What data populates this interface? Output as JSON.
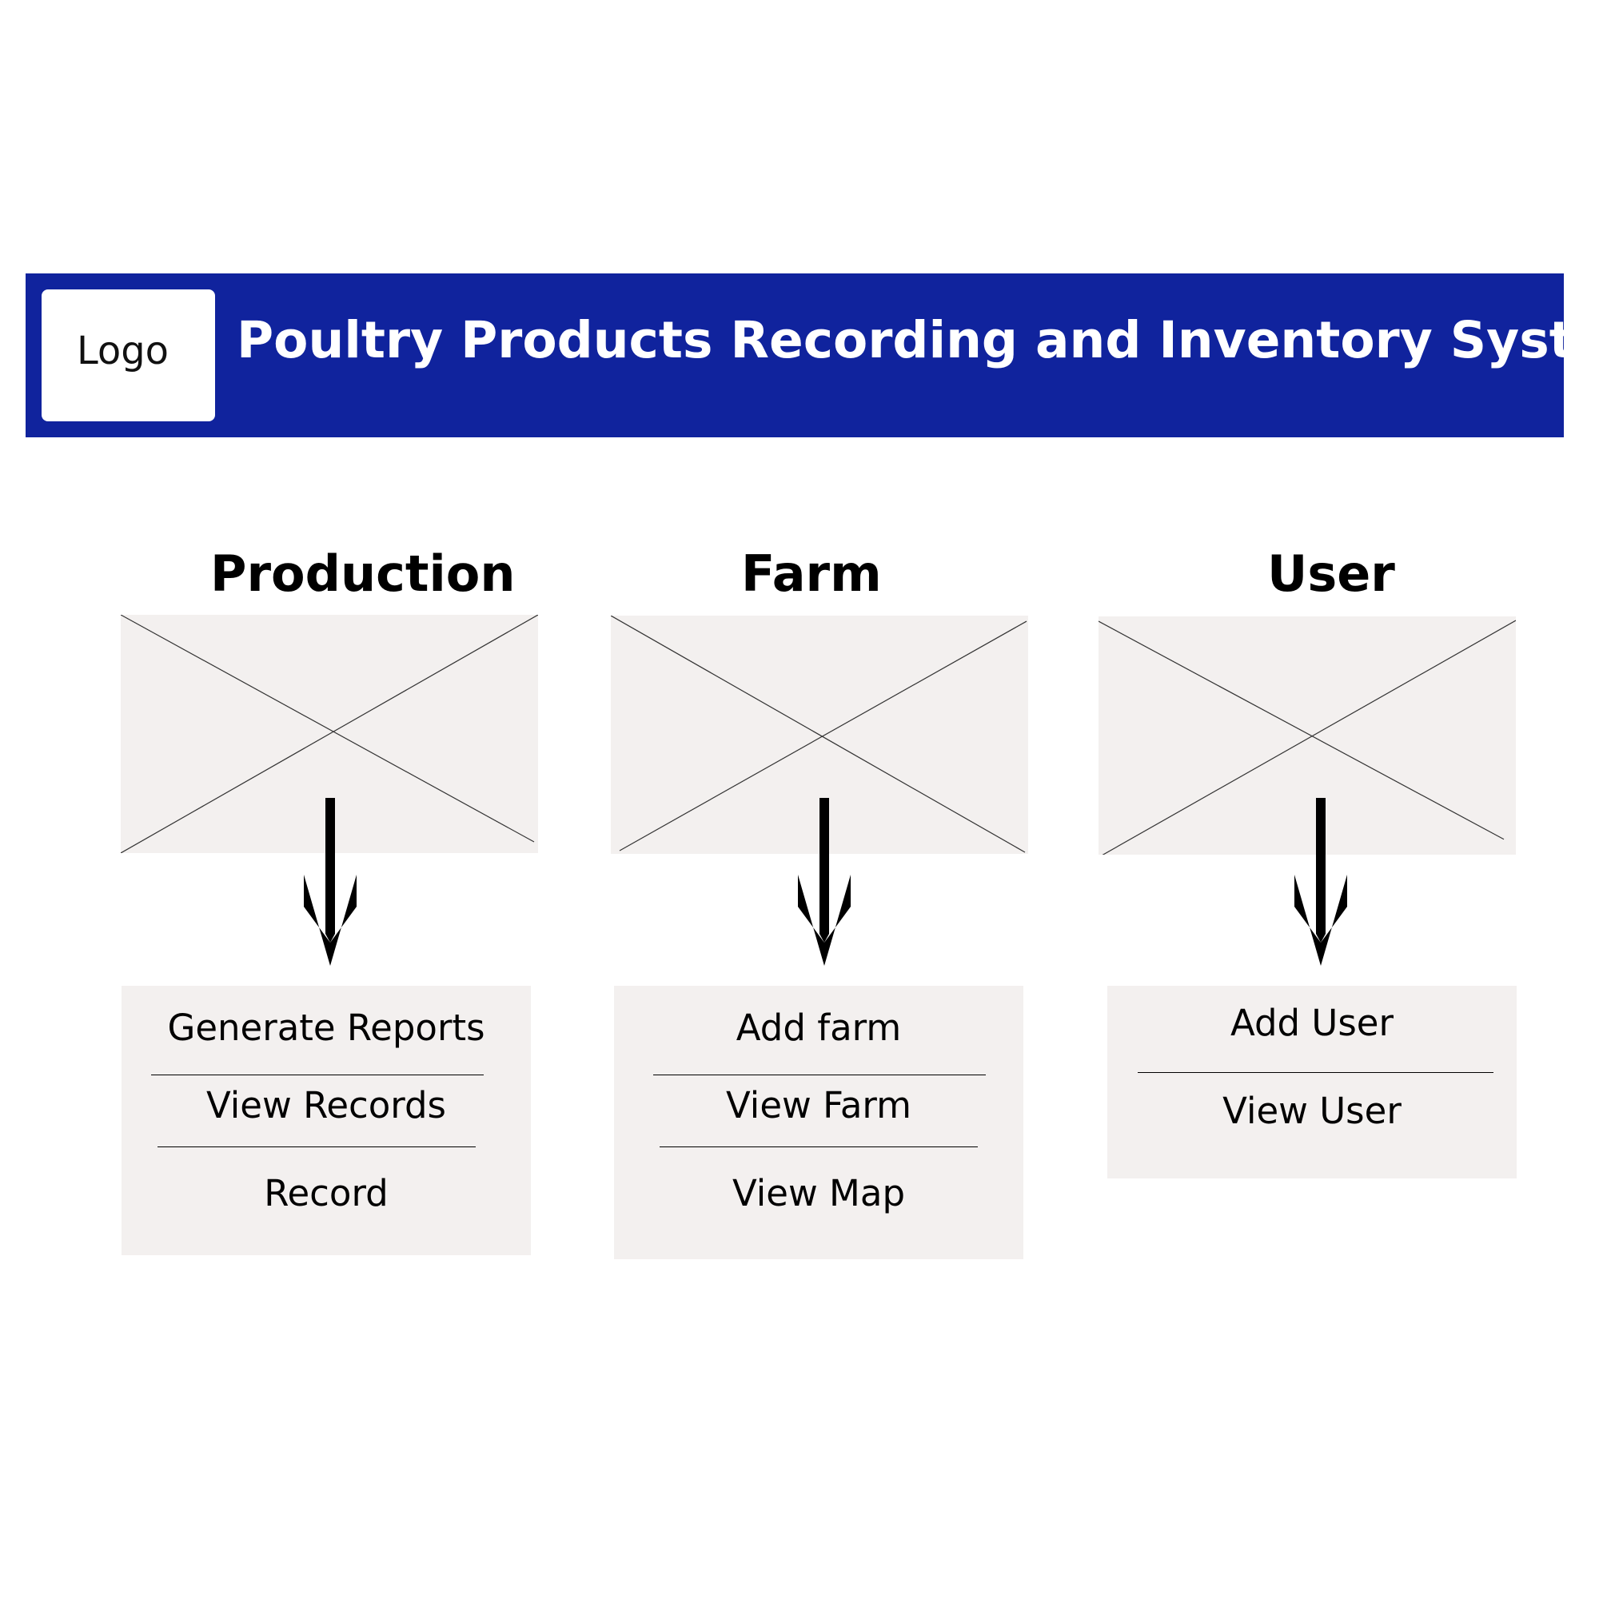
{
  "header": {
    "logo_text": "Logo",
    "title": "Poultry Products Recording and Inventory System",
    "background": "#10239d"
  },
  "sections": [
    {
      "title": "Production",
      "menu": [
        "Generate Reports",
        "View Records",
        "Record"
      ]
    },
    {
      "title": "Farm",
      "menu": [
        "Add farm",
        "View Farm",
        "View Map"
      ]
    },
    {
      "title": "User",
      "menu": [
        "Add User",
        "View User"
      ]
    }
  ],
  "colors": {
    "panel": "#f3f0ef",
    "text": "#000000",
    "header": "#10239d"
  }
}
